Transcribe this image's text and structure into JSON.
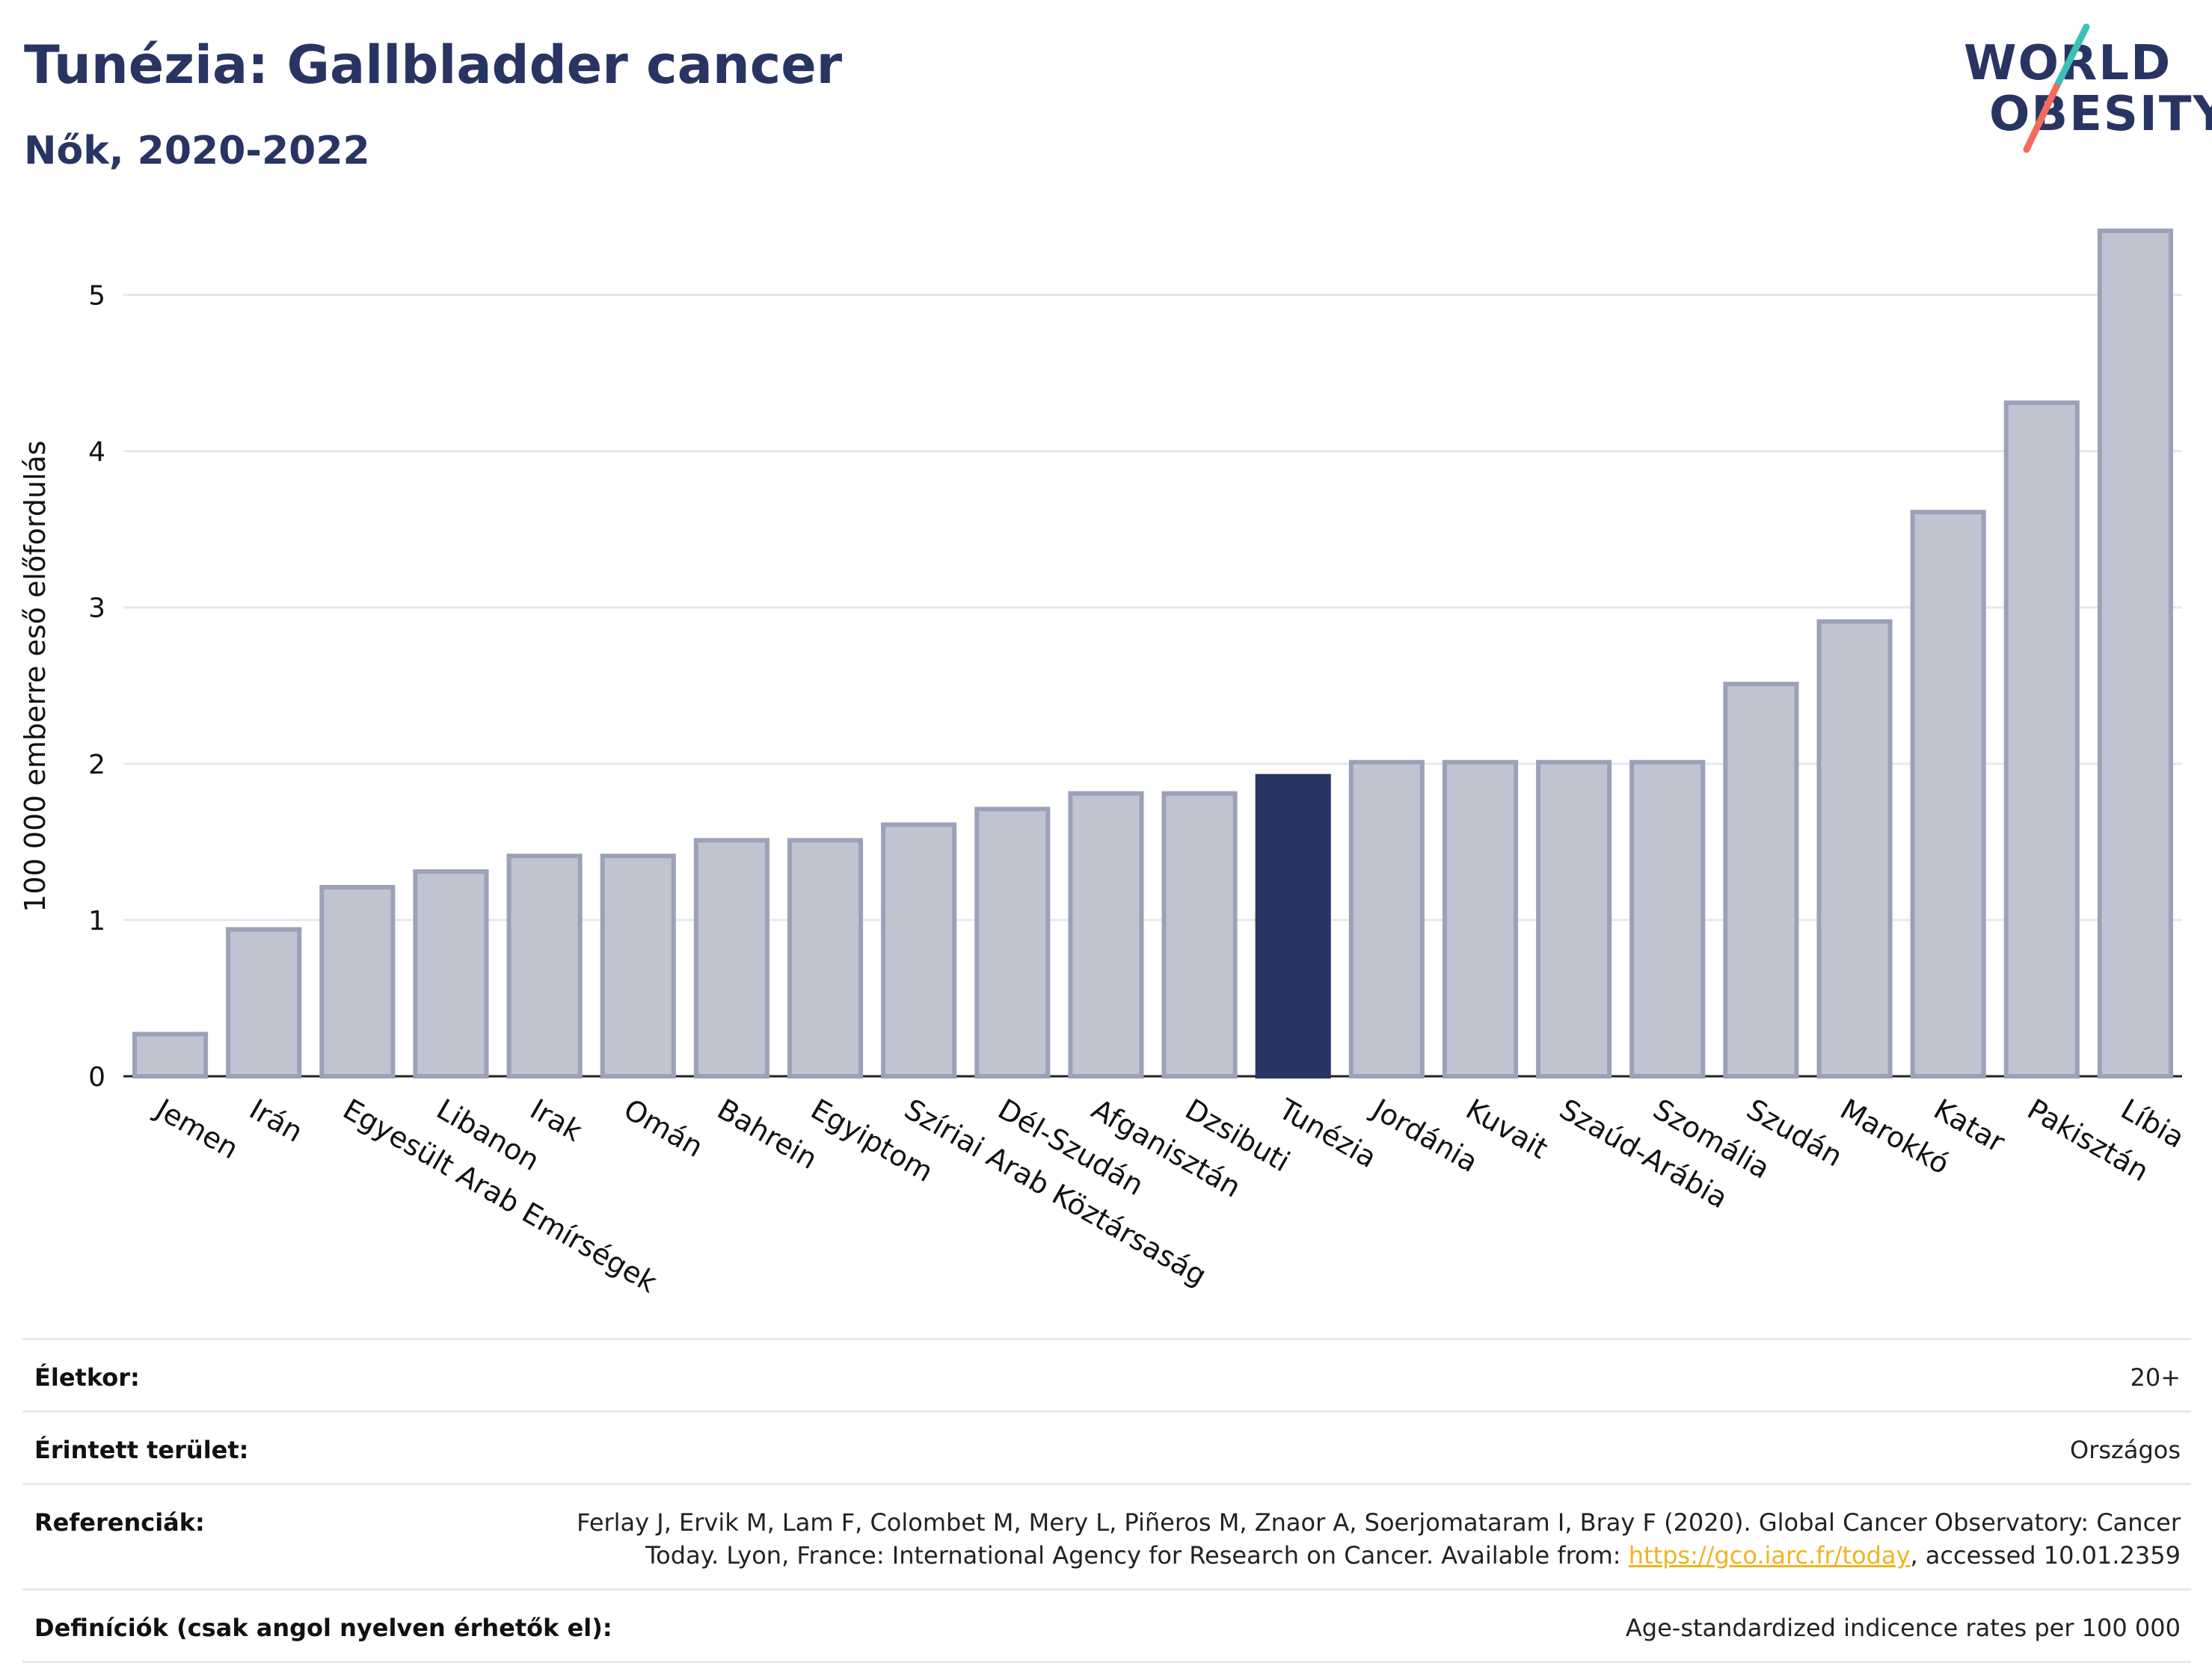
{
  "header": {
    "title": "Tunézia: Gallbladder cancer",
    "subtitle": "Nők, 2020-2022"
  },
  "logo": {
    "line1": "WORLD",
    "line2": "OBESITY",
    "colors": {
      "text": "#283563",
      "slash_top": "#3cc1b7",
      "slash_bottom": "#f26b5b"
    }
  },
  "chart_data": {
    "type": "bar",
    "ylabel": "100 000 emberre eső előfordulás",
    "xlabel": "",
    "ylim": [
      0,
      5.5
    ],
    "yticks": [
      0,
      1,
      2,
      3,
      4,
      5
    ],
    "grid": true,
    "categories": [
      "Jemen",
      "Irán",
      "Egyesült Arab Emírségek",
      "Libanon",
      "Irak",
      "Omán",
      "Bahrein",
      "Egyiptom",
      "Szíriai Arab Köztársaság",
      "Dél-Szudán",
      "Afganisztán",
      "Dzsibuti",
      "Tunézia",
      "Jordánia",
      "Kuvait",
      "Szaúd-Arábia",
      "Szomália",
      "Szudán",
      "Marokkó",
      "Katar",
      "Pakisztán",
      "Líbia"
    ],
    "values": [
      0.27,
      0.94,
      1.21,
      1.31,
      1.41,
      1.41,
      1.51,
      1.51,
      1.61,
      1.71,
      1.81,
      1.81,
      1.92,
      2.01,
      2.01,
      2.01,
      2.01,
      2.51,
      2.91,
      3.61,
      4.31,
      5.41
    ],
    "highlight": "Tunézia",
    "colors": {
      "bar": "#c0c4d1",
      "bar_edge": "#9ba1b8",
      "highlight": "#283563",
      "grid": "#e6e6ee"
    }
  },
  "info": {
    "rows": [
      {
        "key": "Életkor:",
        "value": "20+"
      },
      {
        "key": "Érintett terület:",
        "value": "Országos"
      },
      {
        "key": "Referenciák:",
        "value_line1": "Ferlay J, Ervik M, Lam F, Colombet M, Mery L, Piñeros M, Znaor A, Soerjomataram I, Bray F (2020). Global Cancer Observatory: Cancer",
        "value_line2_pre": "Today. Lyon, France: International Agency for Research on Cancer. Available from: ",
        "link": "https://gco.iarc.fr/today",
        "value_line2_post": ", accessed 10.01.2359"
      },
      {
        "key": "Definíciók (csak angol nyelven érhetők el):",
        "value": "Age-standardized indicence rates per 100 000"
      }
    ]
  }
}
